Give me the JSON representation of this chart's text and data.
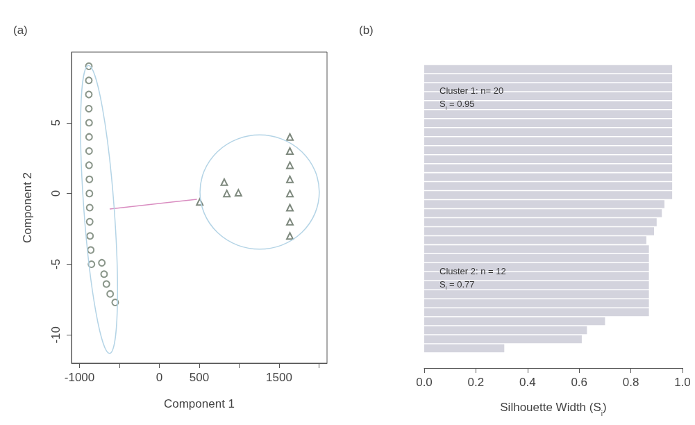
{
  "chart_data": [
    {
      "type": "scatter",
      "title": "(a)",
      "xlabel": "Component 1",
      "ylabel": "Component 2",
      "xlim": [
        -1100,
        2100
      ],
      "ylim": [
        -12,
        10
      ],
      "xticks": [
        -1000,
        {
          "value": -500,
          "label": null
        },
        0,
        500,
        {
          "value": 1000,
          "label": null
        },
        1500,
        {
          "value": 2000,
          "label": null
        }
      ],
      "yticks": [
        -10,
        -5,
        0,
        5
      ],
      "grid": false,
      "series": [
        {
          "type": "line",
          "color": "#d98cc0",
          "marker": "none",
          "x": [
            -622,
            471
          ],
          "values": [
            -1.1,
            -0.41
          ]
        },
        {
          "color": "#6b7a6b",
          "marker": "circle",
          "x": [
            -883,
            -883,
            -883,
            -883,
            -880,
            -880,
            -880,
            -880,
            -876,
            -876,
            -872,
            -872,
            -868,
            -859,
            -850,
            -720,
            -692,
            -663,
            -616,
            -553
          ],
          "values": [
            9,
            8,
            7,
            6,
            5,
            4,
            3,
            2,
            1,
            0,
            -1,
            -2,
            -3,
            -4,
            -5,
            -4.9,
            -5.7,
            -6.4,
            -7.1,
            -7.7
          ]
        },
        {
          "color": "#5d6a5d",
          "marker": "triangle",
          "x": [
            506,
            813,
            845,
            990,
            1635,
            1635,
            1635,
            1635,
            1635,
            1635,
            1635,
            1635
          ],
          "values": [
            -0.6,
            0.8,
            0,
            0.05,
            4,
            3,
            2,
            1,
            0,
            -1,
            -2,
            -3
          ]
        }
      ]
    },
    {
      "type": "bar",
      "title": "(b)",
      "orientation": "horizontal",
      "xlabel": "Silhouette Width (S$_{i}$)",
      "xlim": [
        0,
        1
      ],
      "xticks": [
        {
          "value": 0,
          "label": "0.0"
        },
        0.2,
        0.4,
        0.6,
        0.8,
        {
          "value": 1,
          "label": "1.0"
        }
      ],
      "grid": false,
      "color": "#d3d3dd",
      "categories": [
        null,
        null,
        null,
        null,
        null,
        null,
        null,
        null,
        null,
        null,
        null,
        null,
        null,
        null,
        null,
        null,
        null,
        null,
        null,
        null,
        null,
        null,
        null,
        null,
        null,
        null,
        null,
        null,
        null,
        null,
        null,
        null
      ],
      "values": [
        0.96,
        0.96,
        0.96,
        0.96,
        0.96,
        0.96,
        0.96,
        0.96,
        0.96,
        0.96,
        0.96,
        0.96,
        0.96,
        0.96,
        0.96,
        0.93,
        0.92,
        0.9,
        0.89,
        0.86,
        0.87,
        0.87,
        0.87,
        0.87,
        0.87,
        0.87,
        0.87,
        0.87,
        0.7,
        0.63,
        0.61,
        0.31
      ],
      "annotations": [
        "Cluster 1: n= 20\nS$_{i}$ = 0.95",
        "Cluster 2: n = 12\nS$_{i}$ = 0.77"
      ]
    }
  ]
}
